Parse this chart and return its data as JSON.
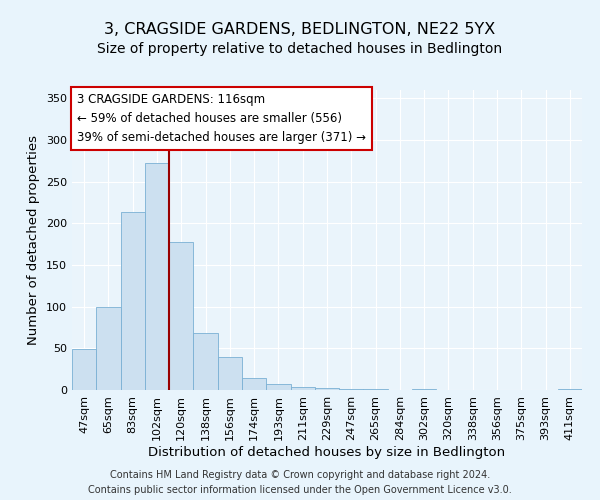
{
  "title": "3, CRAGSIDE GARDENS, BEDLINGTON, NE22 5YX",
  "subtitle": "Size of property relative to detached houses in Bedlington",
  "xlabel": "Distribution of detached houses by size in Bedlington",
  "ylabel": "Number of detached properties",
  "bar_labels": [
    "47sqm",
    "65sqm",
    "83sqm",
    "102sqm",
    "120sqm",
    "138sqm",
    "156sqm",
    "174sqm",
    "193sqm",
    "211sqm",
    "229sqm",
    "247sqm",
    "265sqm",
    "284sqm",
    "302sqm",
    "320sqm",
    "338sqm",
    "356sqm",
    "375sqm",
    "393sqm",
    "411sqm"
  ],
  "bar_values": [
    49,
    100,
    214,
    273,
    178,
    68,
    40,
    14,
    7,
    4,
    3,
    1,
    1,
    0,
    1,
    0,
    0,
    0,
    0,
    0,
    1
  ],
  "bar_color": "#cce0f0",
  "bar_edge_color": "#7ab0d4",
  "vline_pos": 3.5,
  "vline_color": "#990000",
  "annotation_title": "3 CRAGSIDE GARDENS: 116sqm",
  "annotation_line1": "← 59% of detached houses are smaller (556)",
  "annotation_line2": "39% of semi-detached houses are larger (371) →",
  "annotation_box_facecolor": "#ffffff",
  "annotation_box_edgecolor": "#cc0000",
  "ylim": [
    0,
    360
  ],
  "yticks": [
    0,
    50,
    100,
    150,
    200,
    250,
    300,
    350
  ],
  "footer_line1": "Contains HM Land Registry data © Crown copyright and database right 2024.",
  "footer_line2": "Contains public sector information licensed under the Open Government Licence v3.0.",
  "bg_color": "#e8f4fc",
  "plot_bg_color": "#eaf4fb",
  "title_fontsize": 11.5,
  "subtitle_fontsize": 10,
  "axis_label_fontsize": 9.5,
  "tick_fontsize": 8,
  "annotation_fontsize": 8.5,
  "footer_fontsize": 7
}
